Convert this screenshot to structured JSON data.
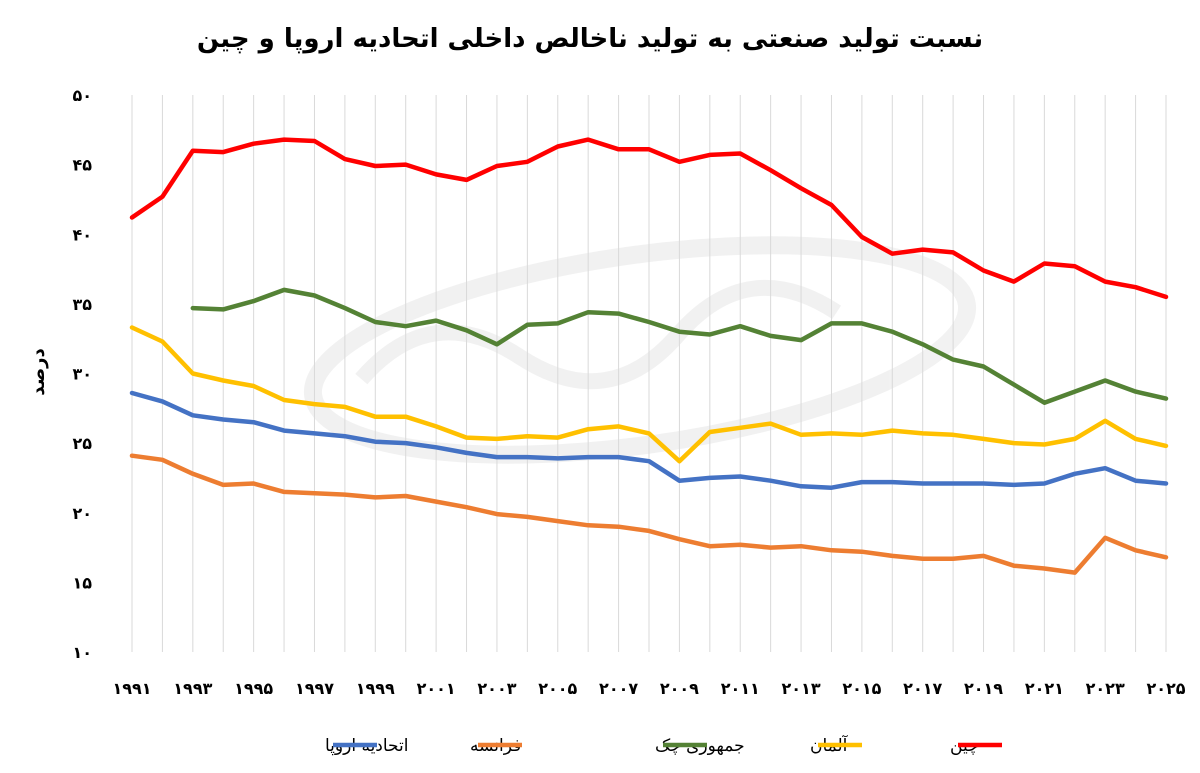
{
  "chart_data": {
    "type": "line",
    "title": "نسبت تولید صنعتی به تولید ناخالص داخلی اتحادیه اروپا و چین",
    "ylabel": "درصد",
    "xlabel": "",
    "ylim": [
      10,
      50
    ],
    "yticks": [
      {
        "value": 10,
        "label": "۱۰"
      },
      {
        "value": 15,
        "label": "۱۵"
      },
      {
        "value": 20,
        "label": "۲۰"
      },
      {
        "value": 25,
        "label": "۲۵"
      },
      {
        "value": 30,
        "label": "۳۰"
      },
      {
        "value": 35,
        "label": "۳۵"
      },
      {
        "value": 40,
        "label": "۴۰"
      },
      {
        "value": 45,
        "label": "۴۵"
      },
      {
        "value": 50,
        "label": "۵۰"
      }
    ],
    "xlim": [
      1991,
      2025
    ],
    "xticks": [
      {
        "value": 1991,
        "label": "۱۹۹۱"
      },
      {
        "value": 1993,
        "label": "۱۹۹۳"
      },
      {
        "value": 1995,
        "label": "۱۹۹۵"
      },
      {
        "value": 1997,
        "label": "۱۹۹۷"
      },
      {
        "value": 1999,
        "label": "۱۹۹۹"
      },
      {
        "value": 2001,
        "label": "۲۰۰۱"
      },
      {
        "value": 2003,
        "label": "۲۰۰۳"
      },
      {
        "value": 2005,
        "label": "۲۰۰۵"
      },
      {
        "value": 2007,
        "label": "۲۰۰۷"
      },
      {
        "value": 2009,
        "label": "۲۰۰۹"
      },
      {
        "value": 2011,
        "label": "۲۰۱۱"
      },
      {
        "value": 2013,
        "label": "۲۰۱۳"
      },
      {
        "value": 2015,
        "label": "۲۰۱۵"
      },
      {
        "value": 2017,
        "label": "۲۰۱۷"
      },
      {
        "value": 2019,
        "label": "۲۰۱۹"
      },
      {
        "value": 2021,
        "label": "۲۰۲۱"
      },
      {
        "value": 2023,
        "label": "۲۰۲۳"
      },
      {
        "value": 2025,
        "label": "۲۰۲۵"
      }
    ],
    "grid": "vertical",
    "legend_position": "bottom",
    "x": [
      1991,
      1992,
      1993,
      1994,
      1995,
      1996,
      1997,
      1998,
      1999,
      2000,
      2001,
      2002,
      2003,
      2004,
      2005,
      2006,
      2007,
      2008,
      2009,
      2010,
      2011,
      2012,
      2013,
      2014,
      2015,
      2016,
      2017,
      2018,
      2019,
      2020,
      2021,
      2022,
      2023,
      2024,
      2025
    ],
    "series": [
      {
        "name": "اتحادیه اروپا",
        "color": "#4472C4",
        "values": [
          28.6,
          28.0,
          27.0,
          26.7,
          26.5,
          25.9,
          25.7,
          25.5,
          25.1,
          25.0,
          24.7,
          24.3,
          24.0,
          24.0,
          23.9,
          24.0,
          24.0,
          23.7,
          22.3,
          22.5,
          22.6,
          22.3,
          21.9,
          21.8,
          22.2,
          22.2,
          22.1,
          22.1,
          22.1,
          22.0,
          22.1,
          22.8,
          23.2,
          22.3,
          22.1
        ]
      },
      {
        "name": "فرانسه",
        "color": "#ED7D31",
        "values": [
          24.1,
          23.8,
          22.8,
          22.0,
          22.1,
          21.5,
          21.4,
          21.3,
          21.1,
          21.2,
          20.8,
          20.4,
          19.9,
          19.7,
          19.4,
          19.1,
          19.0,
          18.7,
          18.1,
          17.6,
          17.7,
          17.5,
          17.6,
          17.3,
          17.2,
          16.9,
          16.7,
          16.7,
          16.9,
          16.2,
          16.0,
          15.7,
          18.2,
          17.3,
          16.8
        ]
      },
      {
        "name": "جمهوری چک",
        "color": "#548235",
        "values": [
          null,
          null,
          34.7,
          34.6,
          35.2,
          36.0,
          35.6,
          34.7,
          33.7,
          33.4,
          33.8,
          33.1,
          32.1,
          33.5,
          33.6,
          34.4,
          34.3,
          33.7,
          33.0,
          32.8,
          33.4,
          32.7,
          32.4,
          33.6,
          33.6,
          33.0,
          32.1,
          31.0,
          30.5,
          29.2,
          27.9,
          28.7,
          29.5,
          28.7,
          28.2
        ]
      },
      {
        "name": "آلمان",
        "color": "#FFC000",
        "values": [
          33.3,
          32.3,
          30.0,
          29.5,
          29.1,
          28.1,
          27.8,
          27.6,
          26.9,
          26.9,
          26.2,
          25.4,
          25.3,
          25.5,
          25.4,
          26.0,
          26.2,
          25.7,
          23.7,
          25.8,
          26.1,
          26.4,
          25.6,
          25.7,
          25.6,
          25.9,
          25.7,
          25.6,
          25.3,
          25.0,
          24.9,
          25.3,
          26.6,
          25.3,
          24.8
        ]
      },
      {
        "name": "چین",
        "color": "#FF0000",
        "values": [
          41.2,
          42.7,
          46.0,
          45.9,
          46.5,
          46.8,
          46.7,
          45.4,
          44.9,
          45.0,
          44.3,
          43.9,
          44.9,
          45.2,
          46.3,
          46.8,
          46.1,
          46.1,
          45.2,
          45.7,
          45.8,
          44.6,
          43.3,
          42.1,
          39.8,
          38.6,
          38.9,
          38.7,
          37.4,
          36.6,
          37.9,
          37.7,
          36.6,
          36.2,
          35.5
        ]
      }
    ]
  }
}
